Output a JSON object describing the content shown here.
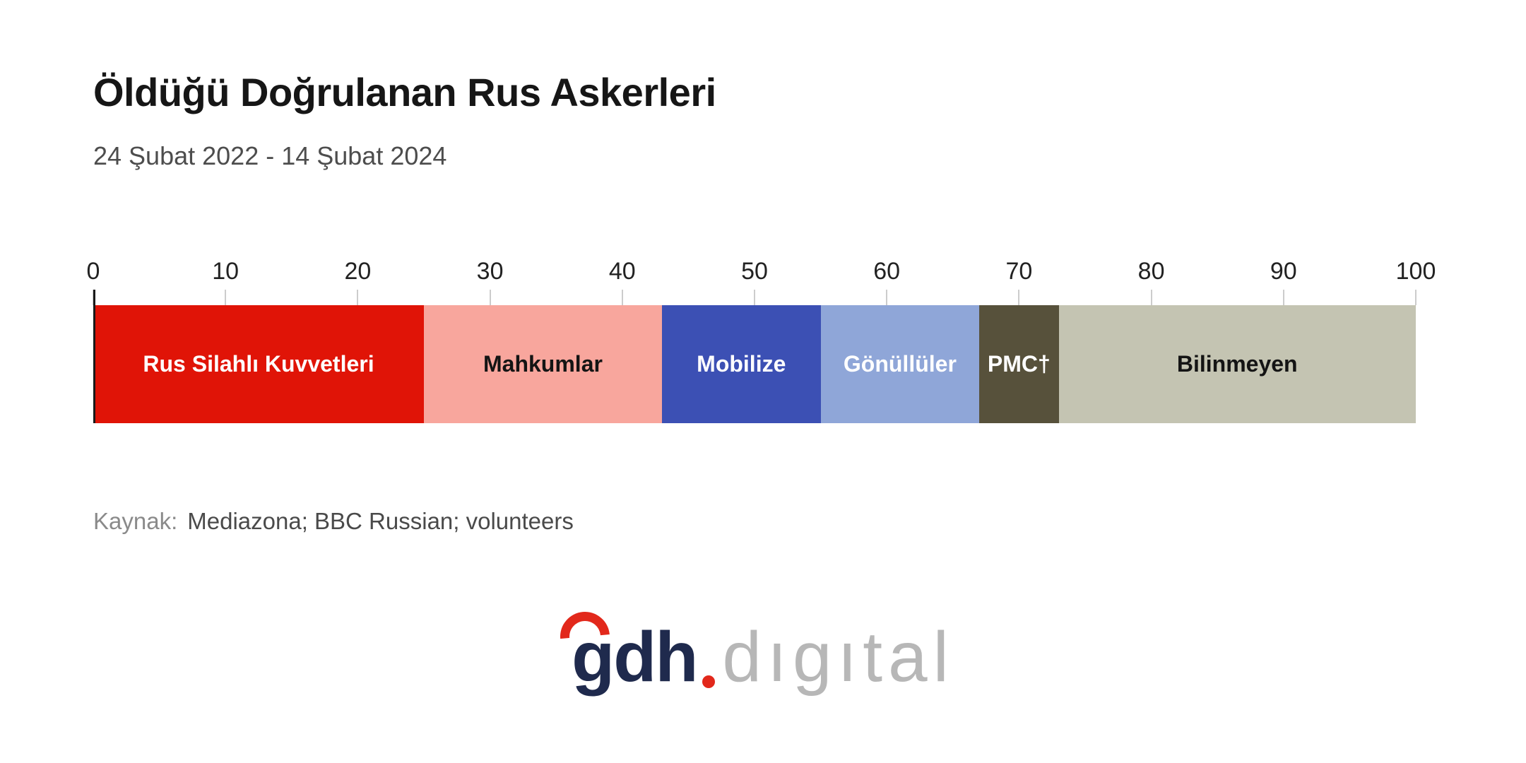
{
  "header": {
    "title": "Öldüğü Doğrulanan Rus Askerleri",
    "subtitle": "24 Şubat 2022 - 14 Şubat 2024"
  },
  "chart_data": {
    "type": "bar",
    "stacked": true,
    "orientation": "horizontal",
    "title": "Öldüğü Doğrulanan Rus Askerleri",
    "subtitle": "24 Şubat 2022 - 14 Şubat 2024",
    "axis": {
      "min": 0,
      "max": 100,
      "ticks": [
        0,
        10,
        20,
        30,
        40,
        50,
        60,
        70,
        80,
        90,
        100
      ]
    },
    "grid": false,
    "legend": "none",
    "segments": [
      {
        "label": "Rus Silahlı Kuvvetleri",
        "value": 25,
        "color": "#e01407",
        "text_color": "#ffffff"
      },
      {
        "label": "Mahkumlar",
        "value": 18,
        "color": "#f8a69d",
        "text_color": "#141414"
      },
      {
        "label": "Mobilize",
        "value": 12,
        "color": "#3c50b4",
        "text_color": "#ffffff"
      },
      {
        "label": "Gönüllüler",
        "value": 12,
        "color": "#8fa6d8",
        "text_color": "#ffffff"
      },
      {
        "label": "PMC†",
        "value": 6,
        "color": "#57513b",
        "text_color": "#ffffff"
      },
      {
        "label": "Bilinmeyen",
        "value": 27,
        "color": "#c4c4b2",
        "text_color": "#141414"
      }
    ]
  },
  "source": {
    "label": "Kaynak:",
    "text": "Mediazona; BBC Russian; volunteers"
  },
  "logo": {
    "main": "gdh",
    "separator": ".",
    "secondary": "dıgıtal"
  }
}
